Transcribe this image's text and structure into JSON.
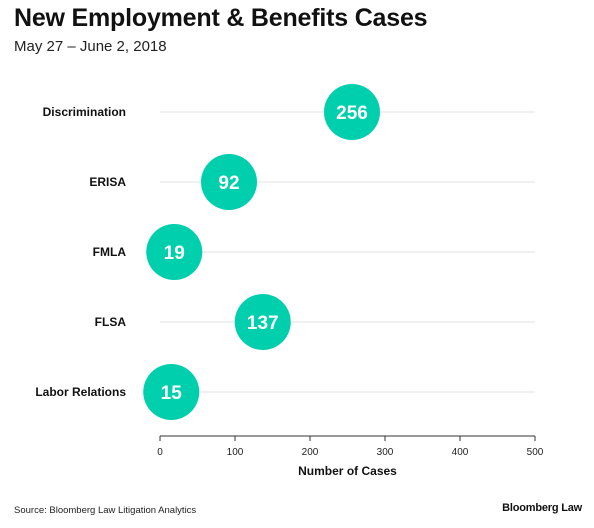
{
  "header": {
    "title": "New Employment & Benefits Cases",
    "subtitle": "May 27 – June 2, 2018"
  },
  "footer": {
    "source": "Source: Bloomberg Law Litigation Analytics",
    "brand": "Bloomberg Law"
  },
  "colors": {
    "bubble": "#00cfae",
    "gridline": "#e2e2e2",
    "axis": "#333333"
  },
  "chart_data": {
    "type": "scatter",
    "title": "New Employment & Benefits Cases",
    "subtitle": "May 27 – June 2, 2018",
    "xlabel": "Number of Cases",
    "ylabel": "",
    "xlim": [
      0,
      500
    ],
    "xticks": [
      0,
      100,
      200,
      300,
      400,
      500
    ],
    "grid": true,
    "categories": [
      "Discrimination",
      "ERISA",
      "FMLA",
      "FLSA",
      "Labor Relations"
    ],
    "values": [
      256,
      92,
      19,
      137,
      15
    ]
  }
}
